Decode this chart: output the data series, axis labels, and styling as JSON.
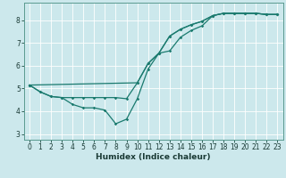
{
  "xlabel": "Humidex (Indice chaleur)",
  "bg_color": "#cce8ec",
  "line_color": "#1a7a6e",
  "grid_color": "#ffffff",
  "xlim": [
    -0.5,
    23.5
  ],
  "ylim": [
    2.75,
    8.75
  ],
  "yticks": [
    3,
    4,
    5,
    6,
    7,
    8
  ],
  "xticks": [
    0,
    1,
    2,
    3,
    4,
    5,
    6,
    7,
    8,
    9,
    10,
    11,
    12,
    13,
    14,
    15,
    16,
    17,
    18,
    19,
    20,
    21,
    22,
    23
  ],
  "line1_x": [
    0,
    1,
    2,
    3,
    4,
    5,
    6,
    7,
    8,
    9,
    10,
    11,
    12,
    13,
    14,
    15,
    16,
    17,
    18,
    19,
    20,
    21,
    22,
    23
  ],
  "line1_y": [
    5.15,
    4.85,
    4.65,
    4.6,
    4.3,
    4.15,
    4.15,
    4.05,
    3.45,
    3.65,
    4.55,
    5.85,
    6.55,
    6.65,
    7.25,
    7.55,
    7.75,
    8.2,
    8.3,
    8.3,
    8.3,
    8.3,
    8.25,
    8.25
  ],
  "line2_x": [
    0,
    1,
    2,
    3,
    4,
    5,
    6,
    7,
    8,
    9,
    10,
    11,
    12,
    13,
    14,
    15,
    16,
    17,
    18,
    19,
    20,
    21,
    22,
    23
  ],
  "line2_y": [
    5.15,
    4.85,
    4.65,
    4.6,
    4.6,
    4.6,
    4.6,
    4.6,
    4.6,
    4.55,
    5.25,
    6.1,
    6.55,
    7.3,
    7.6,
    7.8,
    7.95,
    8.2,
    8.3,
    8.3,
    8.3,
    8.3,
    8.25,
    8.25
  ],
  "line3_x": [
    0,
    10,
    11,
    12,
    13,
    14,
    15,
    16,
    17,
    18,
    19,
    20,
    21,
    22,
    23
  ],
  "line3_y": [
    5.15,
    5.25,
    6.1,
    6.55,
    7.3,
    7.6,
    7.8,
    7.95,
    8.2,
    8.3,
    8.3,
    8.3,
    8.3,
    8.25,
    8.25
  ],
  "linewidth": 0.9,
  "marker": "D",
  "markersize": 1.8,
  "tick_fontsize": 5.5,
  "label_fontsize": 6.5,
  "label_fontweight": "bold"
}
